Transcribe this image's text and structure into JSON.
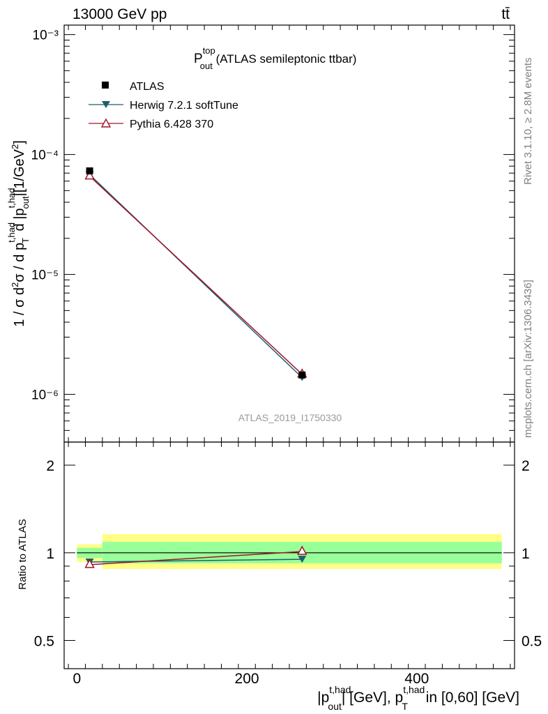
{
  "header": {
    "energy_label": "13000 GeV pp",
    "process_label": "tt̄"
  },
  "side_labels": {
    "rivet": "Rivet 3.1.10, ≥ 2.8M events",
    "mcplots": "mcplots.cern.ch [arXiv:1306.3436]"
  },
  "chart_data": {
    "type": "line",
    "title_main": "P",
    "title_sup": "top",
    "title_sub": "out",
    "title_rest": " (ATLAS semileptonic ttbar)",
    "analysis_id": "ATLAS_2019_I1750330",
    "ylabel": "1 / σ d²σ / d p_T^{t,had} d |p_out^{t,had}| [1/GeV²]",
    "xlabel": "|p_out^{t,had}| [GeV], p_T^{t,had} in [0,60] [GeV]",
    "ratio_ylabel": "Ratio to ATLAS",
    "xlim": [
      -15,
      515
    ],
    "ylim": [
      4e-07,
      0.0012
    ],
    "ylog": true,
    "ratio_ylim": [
      0.4,
      2.4
    ],
    "x_ticks": [
      "0",
      "200",
      "400"
    ],
    "y_ticks": [
      "10⁻⁶",
      "10⁻⁵",
      "10⁻⁴",
      "10⁻³"
    ],
    "ratio_ticks": [
      "0.5",
      "1",
      "2"
    ],
    "legend": {
      "atlas": "ATLAS",
      "herwig": "Herwig 7.2.1 softTune",
      "pythia": "Pythia 6.428 370"
    },
    "series": [
      {
        "name": "ATLAS",
        "color": "#000000",
        "marker": "square",
        "x": [
          15,
          265
        ],
        "y": [
          7.3e-05,
          1.45e-06
        ]
      },
      {
        "name": "Herwig 7.2.1 softTune",
        "color": "#1f5f6b",
        "marker": "triangle-down",
        "x": [
          15,
          265
        ],
        "y": [
          6.8e-05,
          1.38e-06
        ]
      },
      {
        "name": "Pythia 6.428 370",
        "color": "#a0142b",
        "marker": "triangle-up-open",
        "x": [
          15,
          265
        ],
        "y": [
          6.6e-05,
          1.47e-06
        ]
      }
    ],
    "ratio_series": [
      {
        "name": "Herwig 7.2.1 softTune",
        "color": "#1f5f6b",
        "marker": "triangle-down",
        "x": [
          15,
          265
        ],
        "values": [
          0.93,
          0.95
        ]
      },
      {
        "name": "Pythia 6.428 370",
        "color": "#a0142b",
        "marker": "triangle-up-open",
        "x": [
          15,
          265
        ],
        "values": [
          0.91,
          1.01
        ]
      }
    ],
    "uncertainty_bands": [
      {
        "x_range": [
          0,
          30
        ],
        "stat": [
          0.96,
          1.04
        ],
        "total": [
          0.93,
          1.07
        ]
      },
      {
        "x_range": [
          30,
          500
        ],
        "stat": [
          0.92,
          1.09
        ],
        "total": [
          0.88,
          1.16
        ]
      }
    ],
    "colors": {
      "band_inner": "#99ff99",
      "band_outer": "#ffff88"
    }
  }
}
